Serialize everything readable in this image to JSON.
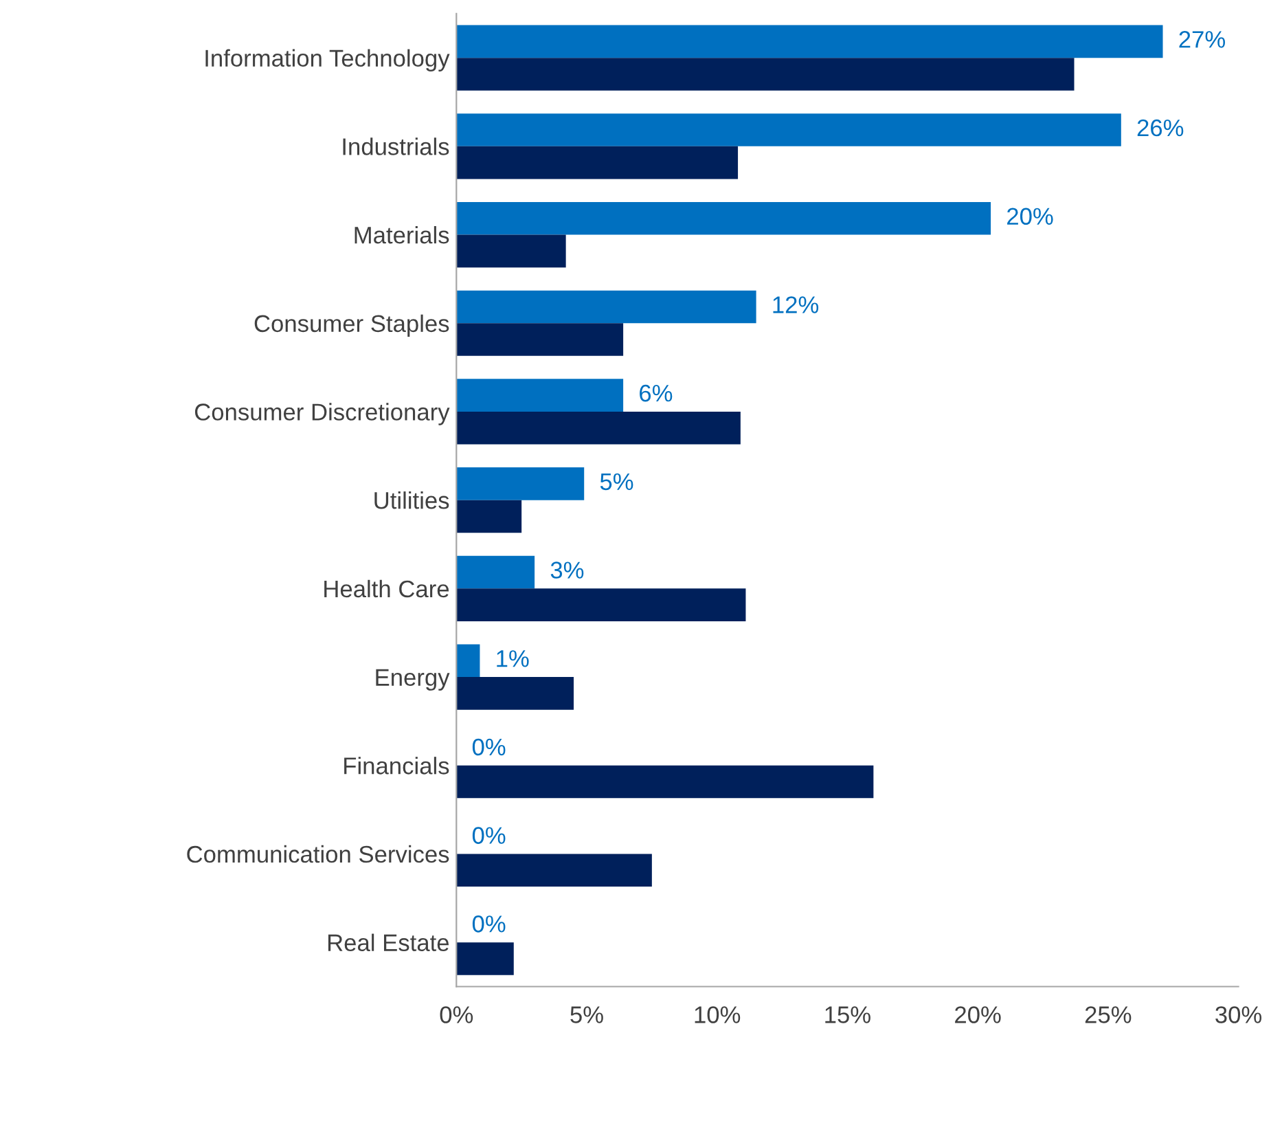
{
  "chart_data": {
    "type": "bar",
    "orientation": "horizontal",
    "categories": [
      "Information Technology",
      "Industrials",
      "Materials",
      "Consumer Staples",
      "Consumer Discretionary",
      "Utilities",
      "Health Care",
      "Energy",
      "Financials",
      "Communication Services",
      "Real Estate"
    ],
    "series": [
      {
        "color": "#0070c0",
        "values": [
          27.1,
          25.5,
          20.5,
          11.5,
          6.4,
          4.9,
          3.0,
          0.9,
          0,
          0,
          0
        ],
        "value_labels": [
          "27%",
          "26%",
          "20%",
          "12%",
          "6%",
          "5%",
          "3%",
          "1%",
          "0%",
          "0%",
          "0%"
        ]
      },
      {
        "color": "#00205b",
        "values": [
          23.7,
          10.8,
          4.2,
          6.4,
          10.9,
          2.5,
          11.1,
          4.5,
          16.0,
          7.5,
          2.2
        ]
      }
    ],
    "xlim": [
      0,
      30
    ],
    "xticks": [
      {
        "value": 0,
        "label": "0%"
      },
      {
        "value": 5,
        "label": "5%"
      },
      {
        "value": 10,
        "label": "10%"
      },
      {
        "value": 15,
        "label": "15%"
      },
      {
        "value": 20,
        "label": "20%"
      },
      {
        "value": 25,
        "label": "25%"
      },
      {
        "value": 30,
        "label": "30%"
      }
    ],
    "grid": false
  }
}
